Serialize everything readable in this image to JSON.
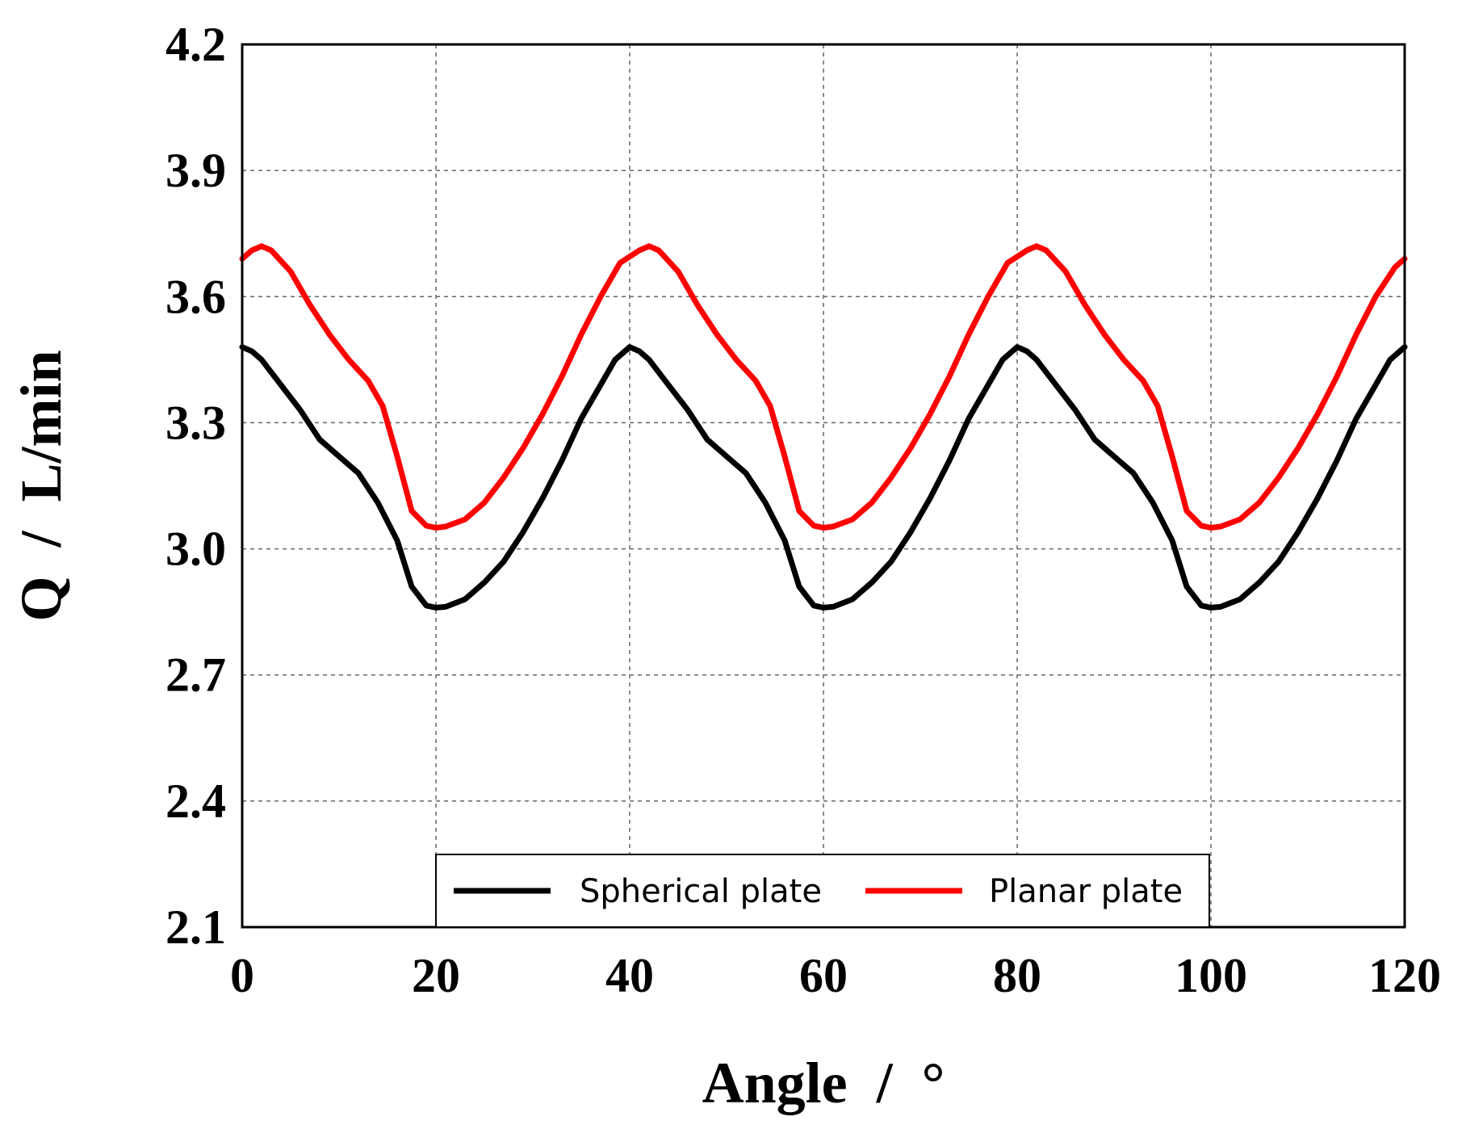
{
  "chart_data": {
    "type": "line",
    "title": "",
    "xlabel": "Angle  /  °",
    "ylabel": "Q  /  L/min",
    "xlim": [
      0,
      120
    ],
    "ylim": [
      2.1,
      4.2
    ],
    "xticks": [
      0,
      20,
      40,
      60,
      80,
      100,
      120
    ],
    "yticks": [
      2.1,
      2.4,
      2.7,
      3.0,
      3.3,
      3.6,
      3.9,
      4.2
    ],
    "xtick_labels": [
      "0",
      "20",
      "40",
      "60",
      "80",
      "100",
      "120"
    ],
    "ytick_labels": [
      "2.1",
      "2.4",
      "2.7",
      "3.0",
      "3.3",
      "3.6",
      "3.9",
      "4.2"
    ],
    "grid": true,
    "legend_position": "bottom-center",
    "series": [
      {
        "name": "Spherical plate",
        "color": "#000000",
        "points": [
          [
            0,
            3.48
          ],
          [
            1,
            3.47
          ],
          [
            2,
            3.45
          ],
          [
            4,
            3.39
          ],
          [
            6,
            3.33
          ],
          [
            8,
            3.26
          ],
          [
            10,
            3.22
          ],
          [
            12,
            3.18
          ],
          [
            14,
            3.11
          ],
          [
            16,
            3.02
          ],
          [
            17.5,
            2.91
          ],
          [
            19,
            2.865
          ],
          [
            20,
            2.86
          ],
          [
            21,
            2.862
          ],
          [
            23,
            2.88
          ],
          [
            25,
            2.92
          ],
          [
            27,
            2.97
          ],
          [
            29,
            3.04
          ],
          [
            31,
            3.12
          ],
          [
            33,
            3.21
          ],
          [
            35,
            3.31
          ],
          [
            37,
            3.39
          ],
          [
            38.5,
            3.45
          ],
          [
            40,
            3.48
          ],
          [
            41,
            3.47
          ],
          [
            42,
            3.45
          ],
          [
            44,
            3.39
          ],
          [
            46,
            3.33
          ],
          [
            48,
            3.26
          ],
          [
            50,
            3.22
          ],
          [
            52,
            3.18
          ],
          [
            54,
            3.11
          ],
          [
            56,
            3.02
          ],
          [
            57.5,
            2.91
          ],
          [
            59,
            2.865
          ],
          [
            60,
            2.86
          ],
          [
            61,
            2.862
          ],
          [
            63,
            2.88
          ],
          [
            65,
            2.92
          ],
          [
            67,
            2.97
          ],
          [
            69,
            3.04
          ],
          [
            71,
            3.12
          ],
          [
            73,
            3.21
          ],
          [
            75,
            3.31
          ],
          [
            77,
            3.39
          ],
          [
            78.5,
            3.45
          ],
          [
            80,
            3.48
          ],
          [
            81,
            3.47
          ],
          [
            82,
            3.45
          ],
          [
            84,
            3.39
          ],
          [
            86,
            3.33
          ],
          [
            88,
            3.26
          ],
          [
            90,
            3.22
          ],
          [
            92,
            3.18
          ],
          [
            94,
            3.11
          ],
          [
            96,
            3.02
          ],
          [
            97.5,
            2.91
          ],
          [
            99,
            2.865
          ],
          [
            100,
            2.86
          ],
          [
            101,
            2.862
          ],
          [
            103,
            2.88
          ],
          [
            105,
            2.92
          ],
          [
            107,
            2.97
          ],
          [
            109,
            3.04
          ],
          [
            111,
            3.12
          ],
          [
            113,
            3.21
          ],
          [
            115,
            3.31
          ],
          [
            117,
            3.39
          ],
          [
            118.5,
            3.45
          ],
          [
            120,
            3.48
          ]
        ]
      },
      {
        "name": "Planar plate",
        "color": "#ff0000",
        "points": [
          [
            0,
            3.69
          ],
          [
            1,
            3.71
          ],
          [
            2,
            3.72
          ],
          [
            3,
            3.71
          ],
          [
            5,
            3.66
          ],
          [
            7,
            3.58
          ],
          [
            9,
            3.51
          ],
          [
            11,
            3.45
          ],
          [
            13,
            3.4
          ],
          [
            14.5,
            3.34
          ],
          [
            16,
            3.22
          ],
          [
            17.5,
            3.09
          ],
          [
            19,
            3.055
          ],
          [
            20,
            3.05
          ],
          [
            21,
            3.053
          ],
          [
            23,
            3.07
          ],
          [
            25,
            3.11
          ],
          [
            27,
            3.17
          ],
          [
            29,
            3.24
          ],
          [
            31,
            3.32
          ],
          [
            33,
            3.41
          ],
          [
            35,
            3.51
          ],
          [
            37,
            3.6
          ],
          [
            39,
            3.68
          ],
          [
            41,
            3.71
          ],
          [
            42,
            3.72
          ],
          [
            43,
            3.71
          ],
          [
            45,
            3.66
          ],
          [
            47,
            3.58
          ],
          [
            49,
            3.51
          ],
          [
            51,
            3.45
          ],
          [
            53,
            3.4
          ],
          [
            54.5,
            3.34
          ],
          [
            56,
            3.22
          ],
          [
            57.5,
            3.09
          ],
          [
            59,
            3.055
          ],
          [
            60,
            3.05
          ],
          [
            61,
            3.053
          ],
          [
            63,
            3.07
          ],
          [
            65,
            3.11
          ],
          [
            67,
            3.17
          ],
          [
            69,
            3.24
          ],
          [
            71,
            3.32
          ],
          [
            73,
            3.41
          ],
          [
            75,
            3.51
          ],
          [
            77,
            3.6
          ],
          [
            79,
            3.68
          ],
          [
            81,
            3.71
          ],
          [
            82,
            3.72
          ],
          [
            83,
            3.71
          ],
          [
            85,
            3.66
          ],
          [
            87,
            3.58
          ],
          [
            89,
            3.51
          ],
          [
            91,
            3.45
          ],
          [
            93,
            3.4
          ],
          [
            94.5,
            3.34
          ],
          [
            96,
            3.22
          ],
          [
            97.5,
            3.09
          ],
          [
            99,
            3.055
          ],
          [
            100,
            3.05
          ],
          [
            101,
            3.053
          ],
          [
            103,
            3.07
          ],
          [
            105,
            3.11
          ],
          [
            107,
            3.17
          ],
          [
            109,
            3.24
          ],
          [
            111,
            3.32
          ],
          [
            113,
            3.41
          ],
          [
            115,
            3.51
          ],
          [
            117,
            3.6
          ],
          [
            119,
            3.67
          ],
          [
            120,
            3.69
          ]
        ]
      }
    ]
  }
}
